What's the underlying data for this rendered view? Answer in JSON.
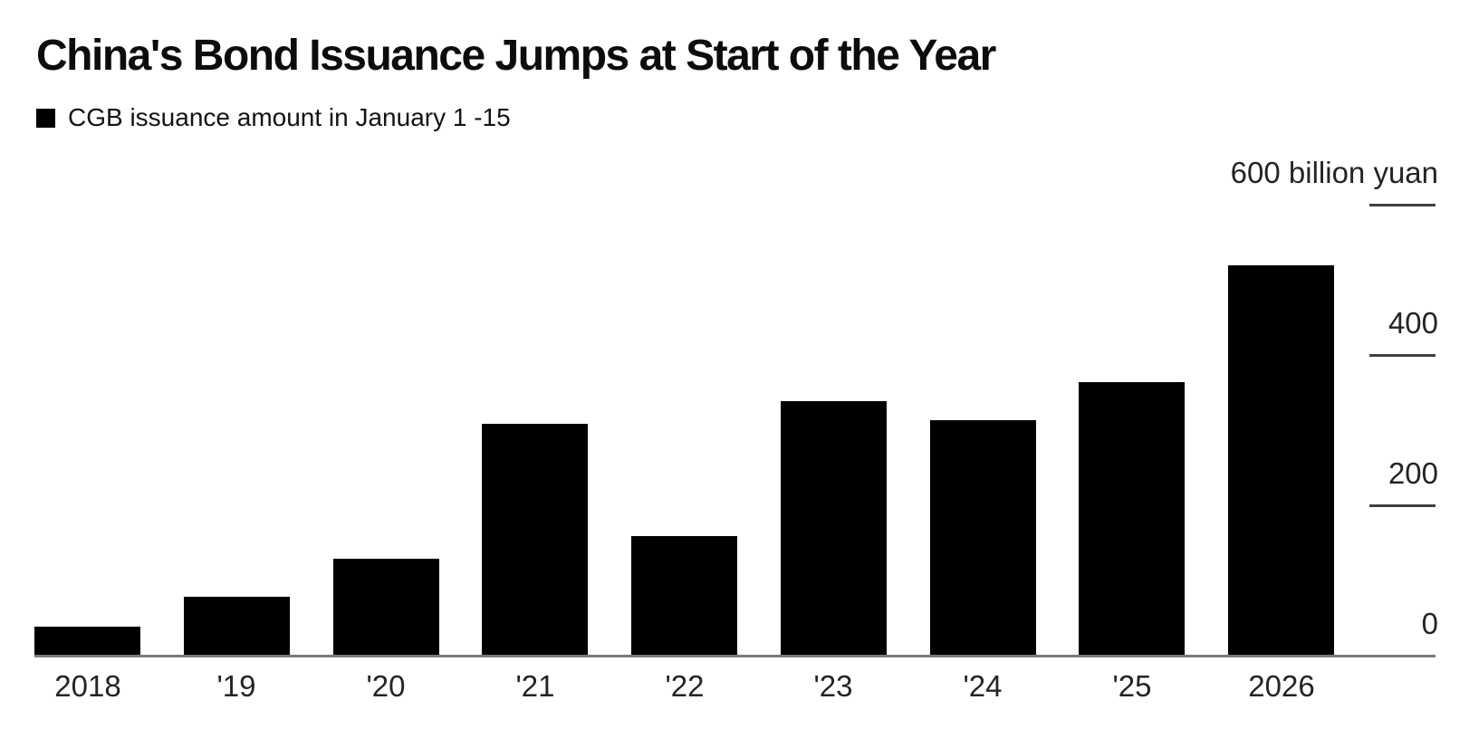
{
  "page": {
    "background": "#ffffff"
  },
  "header": {
    "title": "China's Bond Issuance Jumps at Start of the Year",
    "legend": {
      "swatch_color": "#000000",
      "label": "CGB issuance amount in January 1 -15"
    }
  },
  "chart_data": {
    "type": "bar",
    "title": "China's Bond Issuance Jumps at Start of the Year",
    "legend_entries": [
      "CGB issuance amount in January 1 -15"
    ],
    "legend_position": "top-left",
    "categories": [
      "2018",
      "'19",
      "'20",
      "'21",
      "'22",
      "'23",
      "'24",
      "'25",
      "2026"
    ],
    "values": [
      40,
      80,
      130,
      310,
      160,
      340,
      315,
      365,
      520
    ],
    "unit": "billion yuan",
    "ylabel": "",
    "xlabel": "",
    "ylim": [
      0,
      600
    ],
    "yticks": [
      0,
      200,
      400,
      600
    ],
    "ytick_labels": [
      "0",
      "200",
      "400",
      "600 billion yuan"
    ],
    "y_axis_side": "right",
    "grid": false,
    "bar_color": "#000000",
    "axis_line_color": "#7b7b7b",
    "tick_mark_color": "#404040",
    "text_color": "#242424"
  }
}
